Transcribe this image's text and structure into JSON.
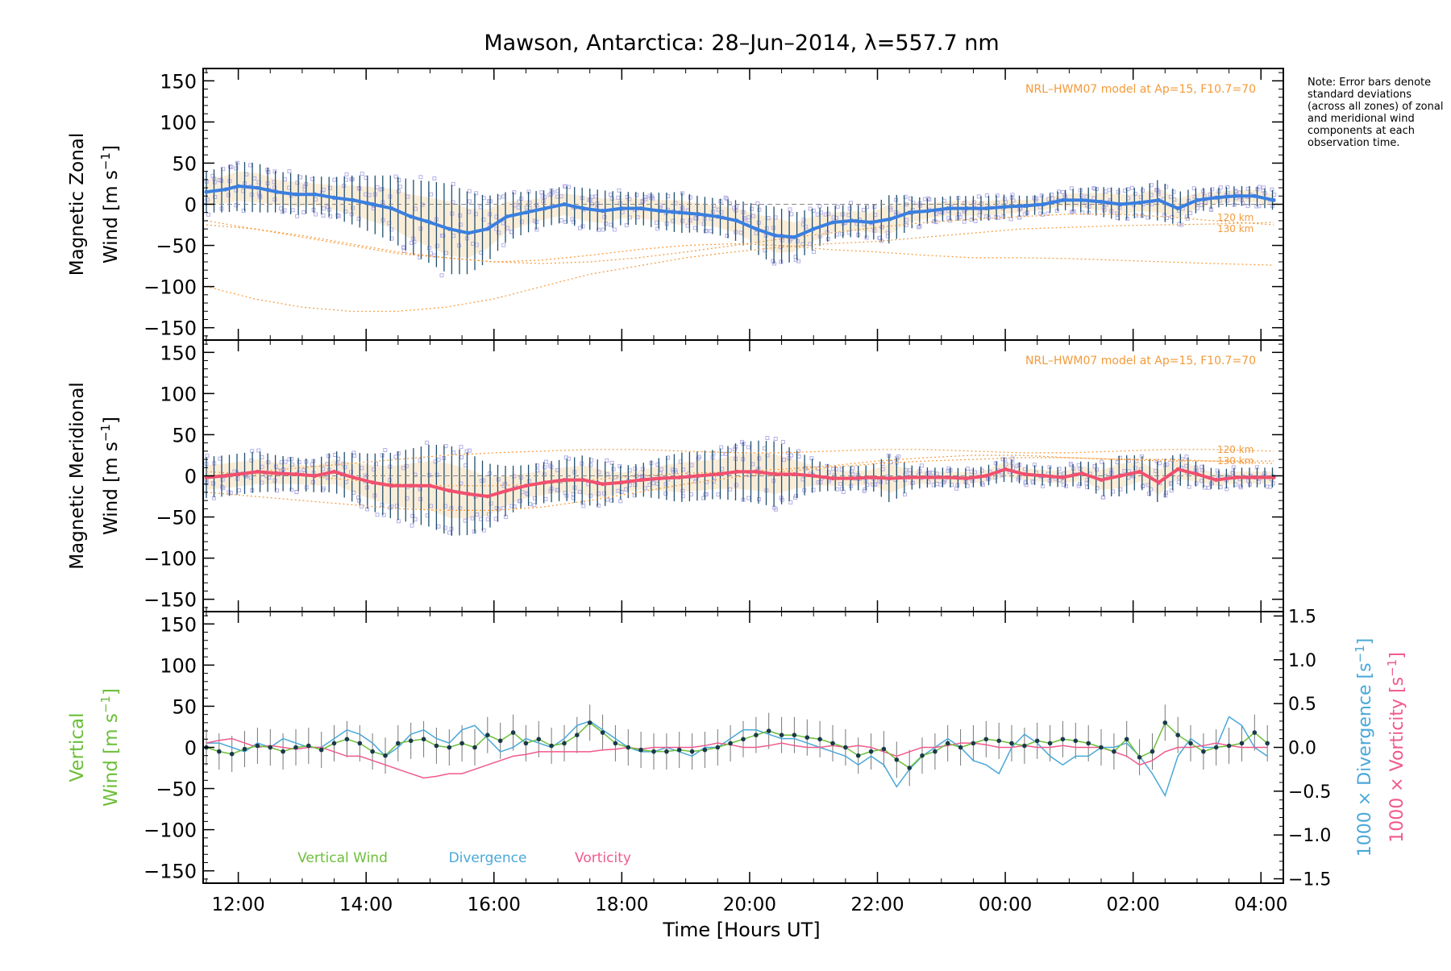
{
  "title": "Mawson, Antarctica: 28–Jun–2014, λ=557.7 nm",
  "note": "Note: Error bars denote standard deviations (across all zones) of zonal and meridional wind components at each observation time.",
  "colors": {
    "zonal": "#3a7fe0",
    "meridional": "#f0506e",
    "vertical": "#6cbf3a",
    "divergence": "#4aa8d8",
    "vorticity": "#f05a8c",
    "model": "#f59a3a",
    "scatter": "#b4b0e6",
    "errorbar": "#1f4f6e"
  },
  "chart_data": [
    {
      "type": "line",
      "name": "zonal-panel",
      "ylabel_line1": "Magnetic Zonal",
      "ylabel_line2": "Wind [m s",
      "ylabel_sup": "−1",
      "ylabel_end": "]",
      "ylim": [
        -165,
        165
      ],
      "yticks": [
        "150",
        "100",
        "50",
        "0",
        "−50",
        "−100",
        "−150"
      ],
      "ytick_values": [
        150,
        100,
        50,
        0,
        -50,
        -100,
        -150
      ],
      "model_label": "NRL–HWM07 model at Ap=15, F10.7=70",
      "model_line_labels": [
        "120 km",
        "130 km"
      ],
      "x": [
        11.5,
        11.8,
        12.0,
        12.3,
        12.6,
        12.9,
        13.2,
        13.5,
        13.8,
        14.1,
        14.4,
        14.7,
        15.0,
        15.3,
        15.6,
        15.9,
        16.2,
        16.5,
        16.8,
        17.1,
        17.4,
        17.7,
        18.0,
        18.3,
        18.6,
        18.9,
        19.2,
        19.5,
        19.8,
        20.1,
        20.4,
        20.7,
        21.0,
        21.3,
        21.6,
        21.9,
        22.2,
        22.5,
        22.8,
        23.1,
        23.4,
        23.7,
        24.0,
        24.3,
        24.6,
        24.9,
        25.2,
        25.5,
        25.8,
        26.1,
        26.4,
        26.7,
        27.0,
        27.3,
        27.6,
        27.9,
        28.2
      ],
      "mean": [
        15,
        18,
        22,
        20,
        15,
        12,
        12,
        8,
        5,
        0,
        -5,
        -15,
        -22,
        -30,
        -35,
        -30,
        -15,
        -10,
        -5,
        0,
        -5,
        -8,
        -5,
        -5,
        -8,
        -10,
        -12,
        -15,
        -20,
        -30,
        -38,
        -40,
        -30,
        -22,
        -20,
        -22,
        -18,
        -10,
        -8,
        -5,
        -5,
        -5,
        -3,
        -2,
        0,
        5,
        5,
        3,
        0,
        2,
        5,
        -5,
        5,
        8,
        10,
        10,
        5
      ],
      "series_err_std": [
        25,
        28,
        30,
        30,
        25,
        25,
        22,
        25,
        30,
        35,
        40,
        45,
        50,
        55,
        50,
        40,
        30,
        25,
        22,
        22,
        25,
        25,
        20,
        20,
        22,
        25,
        22,
        22,
        25,
        30,
        35,
        30,
        25,
        20,
        20,
        20,
        30,
        20,
        15,
        15,
        15,
        15,
        15,
        12,
        12,
        12,
        15,
        18,
        20,
        18,
        25,
        20,
        15,
        12,
        12,
        12,
        12
      ],
      "model_lines": [
        [
          -20,
          -30,
          -40,
          -50,
          -60,
          -65,
          -70,
          -68,
          -62,
          -55,
          -50,
          -48,
          -50,
          -55,
          -58,
          -62,
          -65,
          -65,
          -66,
          -68,
          -70,
          -72,
          -74
        ],
        [
          -100,
          -115,
          -125,
          -130,
          -130,
          -125,
          -115,
          -100,
          -85,
          -75,
          -65,
          -58,
          -52,
          -48,
          -45,
          -40,
          -35,
          -30,
          -28,
          -26,
          -25,
          -24,
          -22
        ],
        [
          -25,
          -30,
          -38,
          -48,
          -58,
          -65,
          -70,
          -72,
          -70,
          -65,
          -58,
          -50,
          -42,
          -35,
          -28,
          -22,
          -18,
          -15,
          -12,
          -12,
          -15,
          -20,
          -25
        ]
      ],
      "model_x": [
        11.5,
        12.25,
        13.0,
        13.75,
        14.5,
        15.25,
        16.0,
        16.75,
        17.5,
        18.25,
        19.0,
        19.75,
        20.5,
        21.25,
        22.0,
        22.75,
        23.5,
        24.25,
        25.0,
        25.75,
        26.5,
        27.25,
        28.2
      ]
    },
    {
      "type": "line",
      "name": "meridional-panel",
      "ylabel_line1": "Magnetic Meridional",
      "ylabel_line2": "Wind [m s",
      "ylabel_sup": "−1",
      "ylabel_end": "]",
      "ylim": [
        -165,
        165
      ],
      "yticks": [
        "150",
        "100",
        "50",
        "0",
        "−50",
        "−100",
        "−150"
      ],
      "ytick_values": [
        150,
        100,
        50,
        0,
        -50,
        -100,
        -150
      ],
      "model_label": "NRL–HWM07 model at Ap=15, F10.7=70",
      "model_line_labels": [
        "120 km",
        "130 km"
      ],
      "x": [
        11.5,
        11.8,
        12.0,
        12.3,
        12.6,
        12.9,
        13.2,
        13.5,
        13.8,
        14.1,
        14.4,
        14.7,
        15.0,
        15.3,
        15.6,
        15.9,
        16.2,
        16.5,
        16.8,
        17.1,
        17.4,
        17.7,
        18.0,
        18.3,
        18.6,
        18.9,
        19.2,
        19.5,
        19.8,
        20.1,
        20.4,
        20.7,
        21.0,
        21.3,
        21.6,
        21.9,
        22.2,
        22.5,
        22.8,
        23.1,
        23.4,
        23.7,
        24.0,
        24.3,
        24.6,
        24.9,
        25.2,
        25.5,
        25.8,
        26.1,
        26.4,
        26.7,
        27.0,
        27.3,
        27.6,
        27.9,
        28.2
      ],
      "mean": [
        -2,
        0,
        2,
        5,
        3,
        2,
        0,
        5,
        -2,
        -8,
        -12,
        -12,
        -12,
        -18,
        -22,
        -25,
        -18,
        -12,
        -8,
        -5,
        -5,
        -10,
        -8,
        -5,
        -3,
        -2,
        0,
        2,
        5,
        5,
        2,
        2,
        0,
        -3,
        -3,
        -2,
        -3,
        -2,
        -2,
        -2,
        -3,
        0,
        8,
        2,
        0,
        -2,
        3,
        -5,
        0,
        5,
        -8,
        8,
        2,
        -5,
        -2,
        -2,
        -2
      ],
      "series_err_std": [
        25,
        25,
        25,
        25,
        22,
        20,
        20,
        25,
        30,
        35,
        40,
        45,
        50,
        55,
        50,
        40,
        30,
        25,
        25,
        25,
        30,
        28,
        20,
        20,
        25,
        30,
        30,
        30,
        35,
        38,
        40,
        30,
        20,
        15,
        15,
        15,
        30,
        15,
        12,
        12,
        12,
        12,
        15,
        12,
        12,
        12,
        15,
        20,
        25,
        20,
        25,
        20,
        15,
        12,
        12,
        12,
        12
      ],
      "model_lines": [
        [
          0,
          5,
          10,
          15,
          20,
          25,
          28,
          30,
          32,
          32,
          30,
          28,
          28,
          30,
          32,
          32,
          30,
          28,
          28,
          30,
          32,
          32,
          30
        ],
        [
          -20,
          -25,
          -30,
          -35,
          -40,
          -42,
          -42,
          -38,
          -30,
          -20,
          -10,
          -2,
          5,
          10,
          15,
          18,
          20,
          22,
          22,
          20,
          20,
          18,
          15
        ],
        [
          5,
          2,
          0,
          -5,
          -10,
          -12,
          -12,
          -10,
          -5,
          0,
          3,
          5,
          8,
          12,
          18,
          22,
          25,
          25,
          22,
          20,
          18,
          18,
          18
        ]
      ],
      "model_x": [
        11.5,
        12.25,
        13.0,
        13.75,
        14.5,
        15.25,
        16.0,
        16.75,
        17.5,
        18.25,
        19.0,
        19.75,
        20.5,
        21.25,
        22.0,
        22.75,
        23.5,
        24.25,
        25.0,
        25.75,
        26.5,
        27.25,
        28.2
      ]
    },
    {
      "type": "line",
      "name": "vertical-panel",
      "ylabel_line1": "Vertical",
      "ylabel_line2": "Wind [m s",
      "ylabel_sup": "−1",
      "ylabel_end": "]",
      "y2label_div": "1000 × Divergence [s",
      "y2label_vort": "1000 × Vorticity [s",
      "y2label_sup": "−1",
      "y2label_end": "]",
      "ylim": [
        -165,
        165
      ],
      "y2lim": [
        -1.55,
        1.55
      ],
      "yticks": [
        "150",
        "100",
        "50",
        "0",
        "−50",
        "−100",
        "−150"
      ],
      "ytick_values": [
        150,
        100,
        50,
        0,
        -50,
        -100,
        -150
      ],
      "y2ticks": [
        "1.5",
        "1.0",
        "0.5",
        "0.0",
        "−0.5",
        "−1.0",
        "−1.5"
      ],
      "y2tick_values": [
        1.5,
        1.0,
        0.5,
        0.0,
        -0.5,
        -1.0,
        -1.5
      ],
      "legend": [
        "Vertical Wind",
        "Divergence",
        "Vorticity"
      ],
      "x": [
        11.5,
        11.7,
        11.9,
        12.1,
        12.3,
        12.5,
        12.7,
        12.9,
        13.1,
        13.3,
        13.5,
        13.7,
        13.9,
        14.1,
        14.3,
        14.5,
        14.7,
        14.9,
        15.1,
        15.3,
        15.5,
        15.7,
        15.9,
        16.1,
        16.3,
        16.5,
        16.7,
        16.9,
        17.1,
        17.3,
        17.5,
        17.7,
        17.9,
        18.1,
        18.3,
        18.5,
        18.7,
        18.9,
        19.1,
        19.3,
        19.5,
        19.7,
        19.9,
        20.1,
        20.3,
        20.5,
        20.7,
        20.9,
        21.1,
        21.3,
        21.5,
        21.7,
        21.9,
        22.1,
        22.3,
        22.5,
        22.7,
        22.9,
        23.1,
        23.3,
        23.5,
        23.7,
        23.9,
        24.1,
        24.3,
        24.5,
        24.7,
        24.9,
        25.1,
        25.3,
        25.5,
        25.7,
        25.9,
        26.1,
        26.3,
        26.5,
        26.7,
        26.9,
        27.1,
        27.3,
        27.5,
        27.7,
        27.9,
        28.1
      ],
      "vertical": [
        0,
        -5,
        -8,
        -2,
        2,
        0,
        -5,
        0,
        2,
        -3,
        5,
        10,
        5,
        -5,
        -10,
        5,
        8,
        10,
        2,
        0,
        5,
        0,
        15,
        8,
        18,
        5,
        10,
        2,
        5,
        15,
        30,
        18,
        5,
        0,
        -3,
        -5,
        -5,
        -3,
        -5,
        -3,
        0,
        5,
        10,
        15,
        20,
        15,
        15,
        12,
        10,
        5,
        0,
        -10,
        -5,
        -2,
        -15,
        -25,
        -10,
        -5,
        5,
        0,
        5,
        10,
        8,
        5,
        2,
        8,
        5,
        10,
        8,
        5,
        0,
        -5,
        10,
        -12,
        -5,
        30,
        15,
        5,
        -5,
        0,
        2,
        5,
        18,
        5
      ],
      "divergence": [
        0.05,
        0.05,
        0.0,
        -0.05,
        0.05,
        0.0,
        0.1,
        0.05,
        0.0,
        0.0,
        0.1,
        0.2,
        0.15,
        0.05,
        -0.1,
        0.0,
        0.15,
        0.2,
        0.1,
        0.05,
        0.2,
        0.25,
        0.1,
        -0.05,
        0.0,
        0.1,
        0.05,
        0.0,
        0.1,
        0.25,
        0.3,
        0.2,
        0.1,
        0.0,
        -0.05,
        -0.05,
        0.0,
        -0.05,
        -0.1,
        0.0,
        0.0,
        0.1,
        0.2,
        0.2,
        0.15,
        0.1,
        0.1,
        0.05,
        0.0,
        -0.05,
        -0.1,
        -0.2,
        -0.1,
        -0.2,
        -0.45,
        -0.25,
        -0.1,
        0.0,
        0.1,
        0.0,
        -0.15,
        -0.2,
        -0.3,
        0.0,
        0.15,
        0.05,
        -0.1,
        -0.2,
        -0.1,
        -0.1,
        0.0,
        0.0,
        0.05,
        -0.1,
        -0.3,
        -0.55,
        -0.1,
        0.1,
        0.0,
        0.0,
        0.35,
        0.25,
        0.0,
        -0.1
      ],
      "vorticity": [
        0.05,
        0.08,
        0.1,
        0.05,
        0.0,
        0.02,
        0.0,
        -0.02,
        0.0,
        0.0,
        -0.05,
        -0.1,
        -0.1,
        -0.15,
        -0.2,
        -0.25,
        -0.3,
        -0.35,
        -0.33,
        -0.3,
        -0.3,
        -0.25,
        -0.2,
        -0.15,
        -0.1,
        -0.08,
        -0.05,
        -0.05,
        -0.05,
        -0.05,
        -0.05,
        -0.03,
        -0.02,
        0.0,
        -0.02,
        0.0,
        0.0,
        0.0,
        0.0,
        0.02,
        0.05,
        0.03,
        0.0,
        0.0,
        0.02,
        0.05,
        0.02,
        0.0,
        0.0,
        0.02,
        0.0,
        0.02,
        0.0,
        -0.05,
        -0.1,
        -0.05,
        0.0,
        0.0,
        0.02,
        0.05,
        0.05,
        0.03,
        0.0,
        0.0,
        0.02,
        0.0,
        0.0,
        0.02,
        0.0,
        0.0,
        0.0,
        -0.05,
        -0.1,
        -0.2,
        -0.15,
        -0.05,
        0.0,
        0.0,
        0.02,
        0.05,
        0.02,
        0.0,
        0.0,
        0.0
      ]
    }
  ],
  "x_axis": {
    "label": "Time [Hours UT]",
    "ticks": [
      "12:00",
      "14:00",
      "16:00",
      "18:00",
      "20:00",
      "22:00",
      "00:00",
      "02:00",
      "04:00"
    ],
    "tick_values": [
      12,
      14,
      16,
      18,
      20,
      22,
      24,
      26,
      28
    ],
    "xlim": [
      11.45,
      28.35
    ]
  }
}
